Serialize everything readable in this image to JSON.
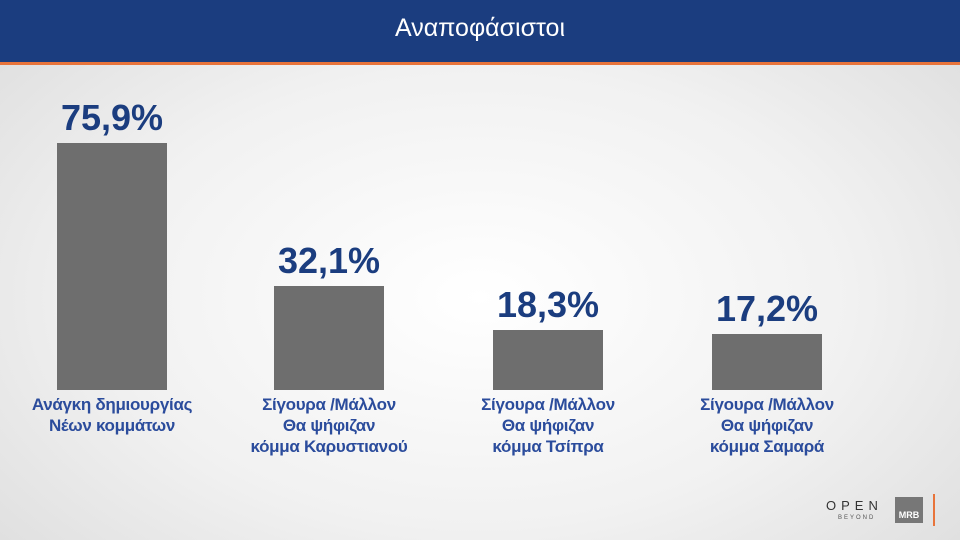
{
  "chart_data": {
    "type": "bar",
    "title": "Αναποφάσιστοι",
    "categories": [
      "Ανάγκη δημιουργίας\nΝέων κομμάτων",
      "Σίγουρα /Μάλλον\nΘα ψήφιζαν\nκόμμα Καρυστιανού",
      "Σίγουρα /Μάλλον\nΘα ψήφιζαν\nκόμμα Τσίπρα",
      "Σίγουρα /Μάλλον\nΘα ψήφιζαν\nκόμμα Σαμαρά"
    ],
    "values": [
      75.9,
      32.1,
      18.3,
      17.2
    ],
    "value_labels": [
      "75,9%",
      "32,1%",
      "18,3%",
      "17,2%"
    ],
    "color": "#6e6e6e",
    "annotations": [
      "OPEN",
      "BEYOND",
      "MRB"
    ]
  }
}
